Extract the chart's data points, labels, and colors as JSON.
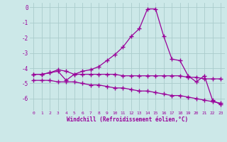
{
  "line1_x": [
    0,
    1,
    2,
    3,
    4,
    5,
    6,
    7,
    8,
    9,
    10,
    11,
    12,
    13,
    14,
    15,
    16,
    17,
    18,
    19,
    20,
    21,
    22,
    23
  ],
  "line1_y": [
    -4.4,
    -4.4,
    -4.3,
    -4.1,
    -4.2,
    -4.4,
    -4.2,
    -4.1,
    -3.9,
    -3.5,
    -3.1,
    -2.6,
    -1.9,
    -1.4,
    -0.1,
    -0.1,
    -1.9,
    -3.4,
    -3.5,
    -4.5,
    -4.9,
    -4.5,
    -6.1,
    -6.4
  ],
  "line2_x": [
    0,
    1,
    2,
    3,
    4,
    5,
    6,
    7,
    8,
    9,
    10,
    11,
    12,
    13,
    14,
    15,
    16,
    17,
    18,
    19,
    20,
    21,
    22,
    23
  ],
  "line2_y": [
    -4.4,
    -4.4,
    -4.3,
    -4.2,
    -4.8,
    -4.4,
    -4.4,
    -4.4,
    -4.4,
    -4.4,
    -4.4,
    -4.5,
    -4.5,
    -4.5,
    -4.5,
    -4.5,
    -4.5,
    -4.5,
    -4.5,
    -4.6,
    -4.6,
    -4.7,
    -4.7,
    -4.7
  ],
  "line3_x": [
    0,
    1,
    2,
    3,
    4,
    5,
    6,
    7,
    8,
    9,
    10,
    11,
    12,
    13,
    14,
    15,
    16,
    17,
    18,
    19,
    20,
    21,
    22,
    23
  ],
  "line3_y": [
    -4.8,
    -4.8,
    -4.8,
    -4.9,
    -4.9,
    -4.9,
    -5.0,
    -5.1,
    -5.1,
    -5.2,
    -5.3,
    -5.3,
    -5.4,
    -5.5,
    -5.5,
    -5.6,
    -5.7,
    -5.8,
    -5.8,
    -5.9,
    -6.0,
    -6.1,
    -6.2,
    -6.3
  ],
  "line_color": "#990099",
  "bg_color": "#cce8e8",
  "grid_color": "#aacccc",
  "xlabel": "Windchill (Refroidissement éolien,°C)",
  "xlim": [
    -0.5,
    23.5
  ],
  "ylim": [
    -6.8,
    0.3
  ],
  "yticks": [
    0,
    -1,
    -2,
    -3,
    -4,
    -5,
    -6
  ],
  "xticks": [
    0,
    1,
    2,
    3,
    4,
    5,
    6,
    7,
    8,
    9,
    10,
    11,
    12,
    13,
    14,
    15,
    16,
    17,
    18,
    19,
    20,
    21,
    22,
    23
  ],
  "marker": "+",
  "markersize": 4,
  "linewidth": 0.9
}
